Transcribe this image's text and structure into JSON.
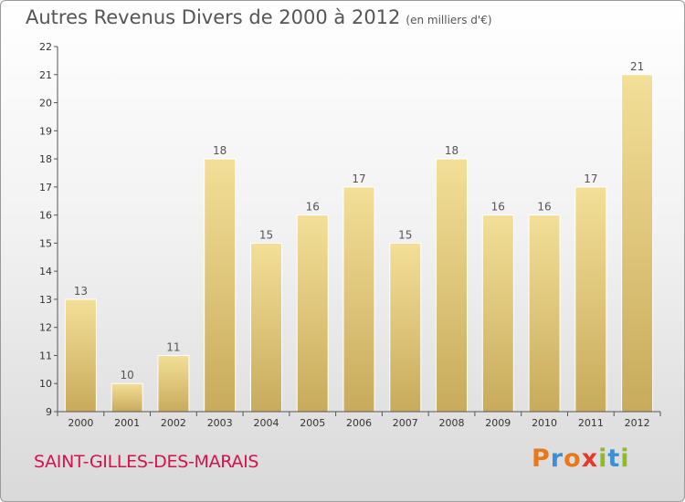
{
  "title": "Autres Revenus Divers de 2000 à 2012",
  "unit": "(en milliers d'€)",
  "commune": "SAINT-GILLES-DES-MARAIS",
  "logo": "Proxiti",
  "colors": {
    "bar_light": "#f3df98",
    "bar_dark": "#c8ab5c",
    "commune_text": "#d2134e"
  },
  "chart_data": {
    "type": "bar",
    "categories": [
      "2000",
      "2001",
      "2002",
      "2003",
      "2004",
      "2005",
      "2006",
      "2007",
      "2008",
      "2009",
      "2010",
      "2011",
      "2012"
    ],
    "values": [
      13,
      10,
      11,
      18,
      15,
      16,
      17,
      15,
      18,
      16,
      16,
      17,
      21
    ],
    "data_labels": [
      "13",
      "10",
      "11",
      "18",
      "15",
      "16",
      "17",
      "15",
      "18",
      "16",
      "16",
      "17",
      "21"
    ],
    "y_ticks": [
      9,
      10,
      11,
      12,
      13,
      14,
      15,
      16,
      17,
      18,
      19,
      20,
      21,
      22
    ],
    "y_tick_labels": [
      "9",
      "10",
      "11",
      "12",
      "13",
      "14",
      "15",
      "16",
      "17",
      "18",
      "19",
      "20",
      "21",
      "22"
    ],
    "ylim": [
      9,
      22
    ],
    "grid": false,
    "legend": "none"
  }
}
